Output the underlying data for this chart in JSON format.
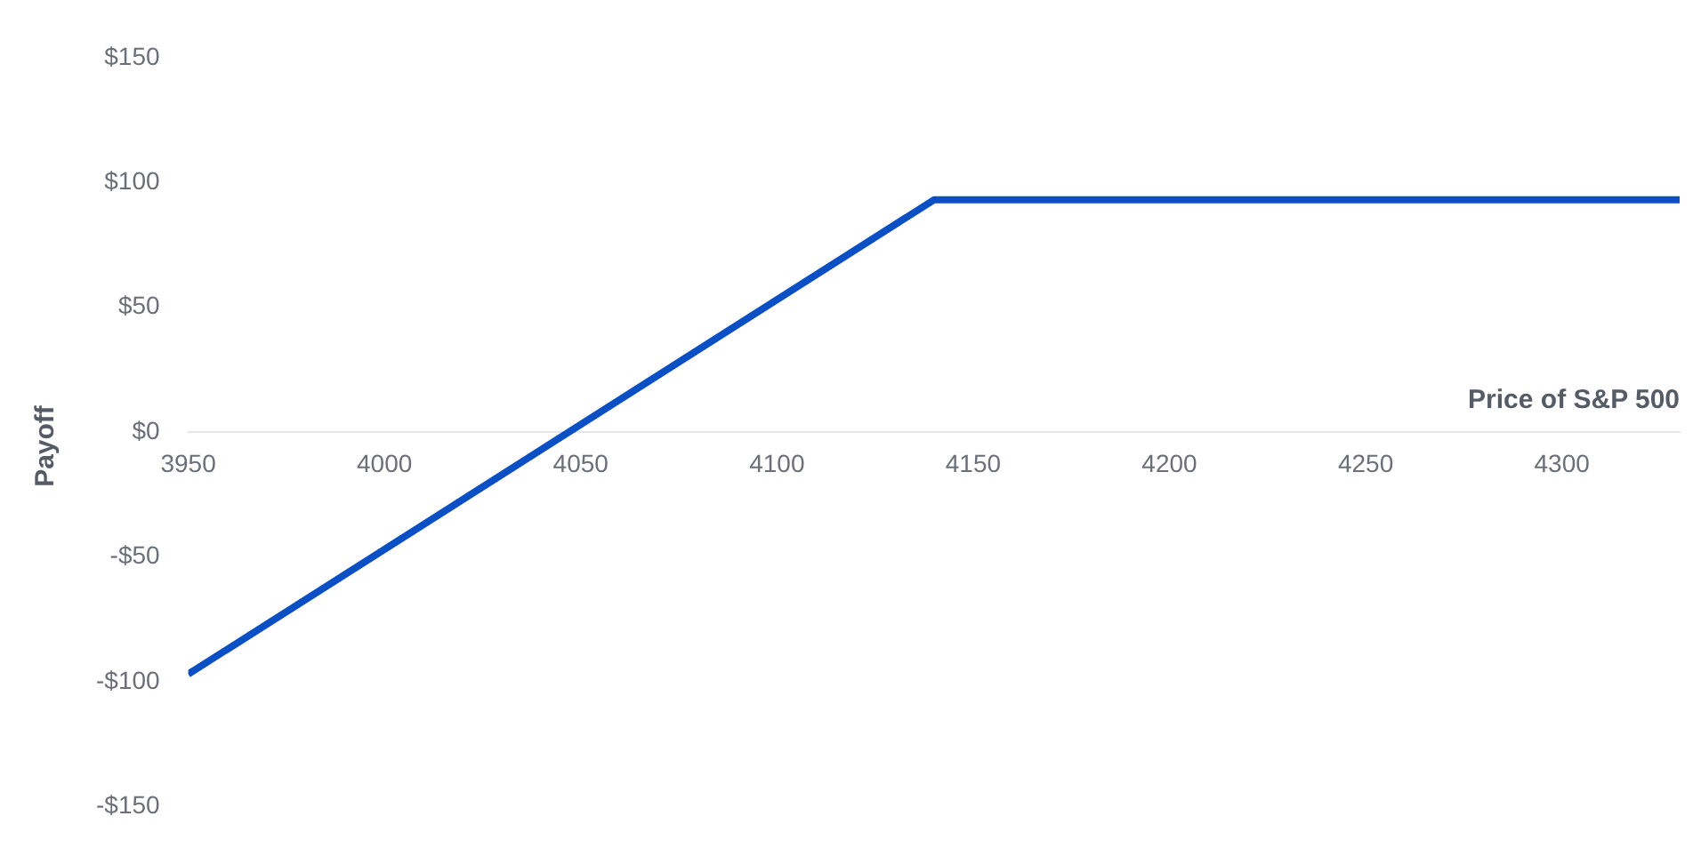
{
  "chart_data": {
    "type": "line",
    "xlabel": "Price of S&P 500",
    "ylabel": "Payoff",
    "x": [
      3950,
      4140,
      4330
    ],
    "series": [
      {
        "color": "#0a4fc4",
        "values": [
          -97,
          93,
          93
        ]
      }
    ],
    "xlim": [
      3950,
      4330
    ],
    "xticks": [
      3950,
      4000,
      4050,
      4100,
      4150,
      4200,
      4250,
      4300
    ],
    "ylim": [
      -150,
      150
    ],
    "yticks": [
      {
        "value": -150,
        "label": "-$150"
      },
      {
        "value": -100,
        "label": "-$100"
      },
      {
        "value": -50,
        "label": "-$50"
      },
      {
        "value": 0,
        "label": "$0"
      },
      {
        "value": 50,
        "label": "$50"
      },
      {
        "value": 100,
        "label": "$100"
      },
      {
        "value": 150,
        "label": "$150"
      }
    ],
    "grid": false,
    "legend": false,
    "marker": "none",
    "line_style": "solid"
  }
}
